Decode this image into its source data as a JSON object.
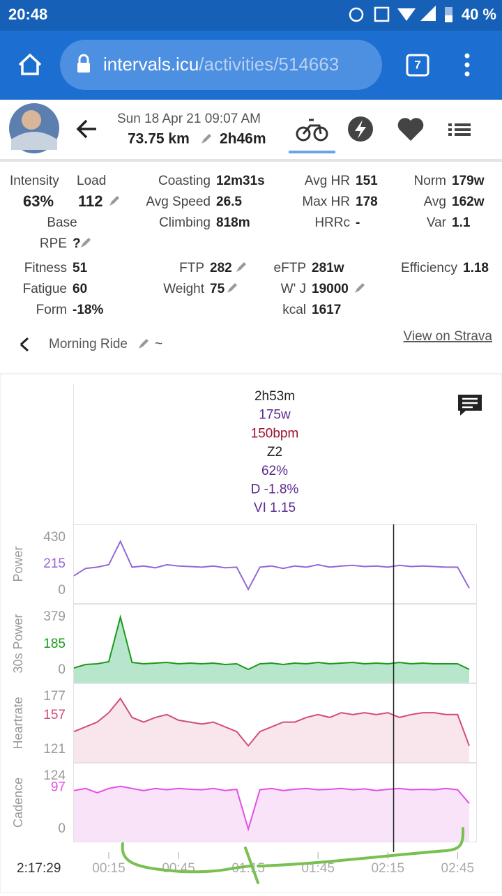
{
  "status_bar": {
    "time": "20:48",
    "battery": "40 %"
  },
  "browser": {
    "host": "intervals.icu",
    "path": "/activities/514663",
    "tabs": "7"
  },
  "activity": {
    "date": "Sun 18 Apr 21 09:07 AM",
    "distance": "73.75 km",
    "duration": "2h46m",
    "name": "Morning Ride",
    "name_suffix": "~",
    "strava_link": "View on Strava"
  },
  "summary": {
    "intensity": {
      "label": "Intensity",
      "value": "63%"
    },
    "load": {
      "label": "Load",
      "value": "112"
    },
    "base": "Base"
  },
  "stats": [
    {
      "label": "Coasting",
      "value": "12m31s"
    },
    {
      "label": "Avg Speed",
      "value": "26.5"
    },
    {
      "label": "Climbing",
      "value": "818m"
    },
    {
      "label": "Avg HR",
      "value": "151"
    },
    {
      "label": "Max HR",
      "value": "178"
    },
    {
      "label": "HRRc",
      "value": "-"
    },
    {
      "label": "Norm",
      "value": "179w"
    },
    {
      "label": "Avg",
      "value": "162w"
    },
    {
      "label": "Var",
      "value": "1.1"
    },
    {
      "label": "RPE",
      "value": "?"
    },
    {
      "label": "Fitness",
      "value": "51"
    },
    {
      "label": "Fatigue",
      "value": "60"
    },
    {
      "label": "Form",
      "value": "-18%"
    },
    {
      "label": "FTP",
      "value": "282"
    },
    {
      "label": "Weight",
      "value": "75"
    },
    {
      "label": "eFTP",
      "value": "281w"
    },
    {
      "label": "W' J",
      "value": "19000"
    },
    {
      "label": "kcal",
      "value": "1617"
    },
    {
      "label": "Efficiency",
      "value": "1.18"
    }
  ],
  "chart_data": {
    "type": "line",
    "summary": [
      {
        "text": "2h53m",
        "color": "#222222"
      },
      {
        "text": "175w",
        "color": "#5b2a8e"
      },
      {
        "text": "150bpm",
        "color": "#9b1030"
      },
      {
        "text": "Z2",
        "color": "#222222"
      },
      {
        "text": "62%",
        "color": "#5b2a8e"
      },
      {
        "text": "D -1.8%",
        "color": "#5b2a8e"
      },
      {
        "text": "VI 1.15",
        "color": "#5b2a8e"
      }
    ],
    "xlim": [
      0,
      173
    ],
    "xticks": [
      {
        "value": 15,
        "label": "00:15"
      },
      {
        "value": 45,
        "label": "00:45"
      },
      {
        "value": 75,
        "label": "01:15"
      },
      {
        "value": 105,
        "label": "01:45"
      },
      {
        "value": 135,
        "label": "02:15"
      },
      {
        "value": 165,
        "label": "02:45"
      }
    ],
    "cursor": {
      "value": 137.48,
      "label": "2:17:29"
    },
    "x": [
      0,
      5,
      10,
      15,
      20,
      25,
      30,
      35,
      40,
      45,
      50,
      55,
      60,
      65,
      70,
      75,
      80,
      85,
      90,
      95,
      100,
      105,
      110,
      115,
      120,
      125,
      130,
      135,
      140,
      145,
      150,
      155,
      160,
      165,
      170
    ],
    "panels": [
      {
        "name": "Power",
        "color": "#9467d8",
        "fill": "#ffffff",
        "ylim": [
          0,
          430
        ],
        "yticks": [
          0,
          215,
          430
        ],
        "values": [
          120,
          180,
          190,
          210,
          400,
          190,
          200,
          185,
          210,
          200,
          195,
          190,
          200,
          185,
          190,
          10,
          190,
          200,
          180,
          200,
          190,
          210,
          190,
          200,
          205,
          195,
          200,
          190,
          205,
          195,
          200,
          195,
          190,
          190,
          20
        ]
      },
      {
        "name": "30s Power",
        "color": "#1a9a1a",
        "fill": "#b8e6cc",
        "ylim": [
          0,
          379
        ],
        "yticks": [
          0,
          185,
          379
        ],
        "values": [
          15,
          40,
          45,
          60,
          379,
          55,
          45,
          50,
          55,
          45,
          50,
          45,
          50,
          40,
          45,
          5,
          45,
          50,
          40,
          50,
          45,
          55,
          45,
          50,
          55,
          45,
          50,
          45,
          55,
          45,
          50,
          45,
          45,
          45,
          5
        ]
      },
      {
        "name": "Heartrate",
        "color": "#d14d78",
        "fill": "#f8e6ec",
        "ylim": [
          121,
          177
        ],
        "yticks": [
          121,
          157,
          177
        ],
        "values": [
          140,
          145,
          150,
          160,
          175,
          155,
          150,
          155,
          158,
          152,
          150,
          148,
          150,
          145,
          140,
          125,
          140,
          145,
          150,
          150,
          155,
          158,
          155,
          160,
          158,
          160,
          158,
          160,
          155,
          158,
          160,
          160,
          158,
          158,
          125
        ]
      },
      {
        "name": "Cadence",
        "color": "#e64de6",
        "fill": "#f9e3f9",
        "ylim": [
          0,
          124
        ],
        "yticks": [
          0,
          97,
          124
        ],
        "values": [
          90,
          95,
          85,
          95,
          100,
          95,
          90,
          95,
          92,
          95,
          93,
          92,
          95,
          90,
          93,
          0,
          92,
          95,
          90,
          93,
          95,
          92,
          93,
          95,
          92,
          94,
          90,
          93,
          95,
          92,
          93,
          92,
          95,
          92,
          60
        ]
      }
    ]
  }
}
